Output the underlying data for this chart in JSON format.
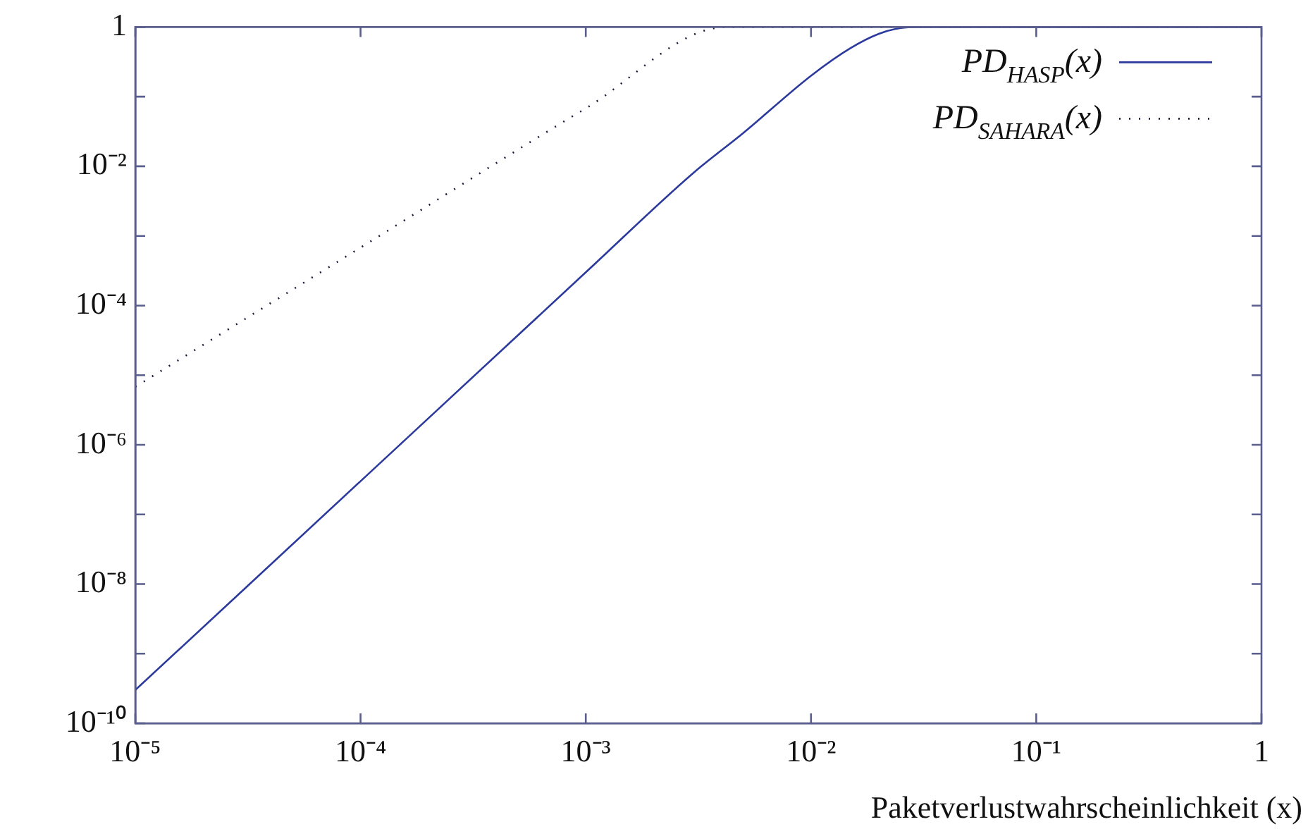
{
  "chart_data": {
    "type": "line",
    "xlabel": "Paketverlustwahrscheinlichkeit (x)",
    "log": "xy",
    "legend": "top right",
    "xlim": [
      1e-05,
      1
    ],
    "ylim": [
      1e-10,
      1
    ],
    "xticks": [
      {
        "value": 1e-05,
        "label": "10⁻⁵"
      },
      {
        "value": 0.0001,
        "label": "10⁻⁴"
      },
      {
        "value": 0.001,
        "label": "10⁻³"
      },
      {
        "value": 0.01,
        "label": "10⁻²"
      },
      {
        "value": 0.1,
        "label": "10⁻¹"
      },
      1
    ],
    "yticks": [
      {
        "value": 1e-10,
        "label": "10⁻¹⁰"
      },
      {
        "value": 1e-09,
        "label": null
      },
      {
        "value": 1e-08,
        "label": "10⁻⁸"
      },
      {
        "value": 1e-07,
        "label": null
      },
      {
        "value": 1e-06,
        "label": "10⁻⁶"
      },
      {
        "value": 1e-05,
        "label": null
      },
      {
        "value": 0.0001,
        "label": "10⁻⁴"
      },
      {
        "value": 0.001,
        "label": null
      },
      {
        "value": 0.01,
        "label": "10⁻²"
      },
      {
        "value": 0.1,
        "label": null
      },
      1
    ],
    "series": [
      {
        "name": "PD$_{HASP}$(x)",
        "color": "#2b3a9c",
        "line_style": "solid",
        "x": [
          1e-05,
          0.0001,
          0.001,
          0.003,
          0.005,
          0.01,
          0.015,
          0.02,
          0.025,
          0.03,
          1
        ],
        "values": [
          3e-10,
          3e-07,
          0.0003,
          0.008,
          0.03,
          0.2,
          0.5,
          0.8,
          0.97,
          1,
          1
        ]
      },
      {
        "name": "PD$_{SAHARA}$(x)",
        "color": "#1a1a3a",
        "line_style": "dotted",
        "x": [
          1e-05,
          0.0001,
          0.001,
          0.0042,
          1
        ],
        "values": [
          6.8e-06,
          0.00068,
          0.068,
          1,
          1
        ]
      }
    ]
  }
}
